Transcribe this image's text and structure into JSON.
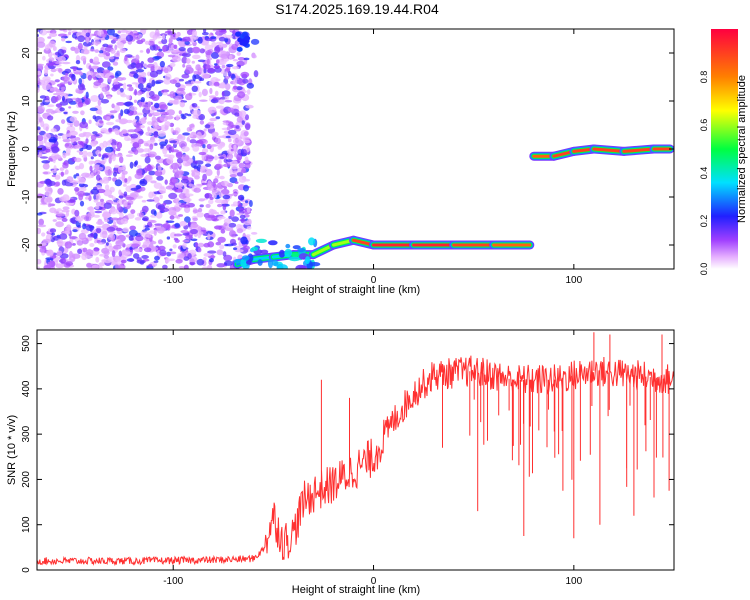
{
  "title": "S174.2025.169.19.44.R04",
  "chart_data": [
    {
      "type": "heatmap",
      "xlabel": "Height of straight line (km)",
      "ylabel": "Frequency (Hz)",
      "xlim": [
        -168,
        150
      ],
      "ylim": [
        -25,
        25
      ],
      "xticks": [
        -100,
        0,
        100
      ],
      "yticks": [
        -20,
        -10,
        0,
        10,
        20
      ],
      "colorbar": {
        "label": "Normalized spectral amplitude",
        "range": [
          0,
          1
        ],
        "ticks": [
          "0.0",
          "0.2",
          "0.4",
          "0.6",
          "0.8"
        ]
      },
      "noise_region": {
        "x_from": -168,
        "x_to": -62,
        "f_from": -25,
        "f_to": 25
      },
      "carrier_trace": [
        {
          "x": -68,
          "f": -24,
          "amp": 0.3
        },
        {
          "x": -60,
          "f": -23,
          "amp": 0.4
        },
        {
          "x": -50,
          "f": -22.5,
          "amp": 0.35
        },
        {
          "x": -40,
          "f": -22,
          "amp": 0.45
        },
        {
          "x": -30,
          "f": -22,
          "amp": 0.85
        },
        {
          "x": -20,
          "f": -20,
          "amp": 0.6
        },
        {
          "x": -10,
          "f": -19,
          "amp": 0.9
        },
        {
          "x": 0,
          "f": -20,
          "amp": 0.95
        },
        {
          "x": 20,
          "f": -20,
          "amp": 0.95
        },
        {
          "x": 40,
          "f": -20,
          "amp": 0.95
        },
        {
          "x": 60,
          "f": -20,
          "amp": 0.9
        },
        {
          "x": 78,
          "f": -20,
          "amp": 0.85
        },
        {
          "x": 80,
          "f": -1.5,
          "amp": 0.85
        },
        {
          "x": 90,
          "f": -1.5,
          "amp": 0.9
        },
        {
          "x": 100,
          "f": -0.5,
          "amp": 0.9
        },
        {
          "x": 110,
          "f": 0,
          "amp": 0.95
        },
        {
          "x": 125,
          "f": -0.5,
          "amp": 0.9
        },
        {
          "x": 140,
          "f": 0,
          "amp": 0.95
        },
        {
          "x": 148,
          "f": 0,
          "amp": 0.9
        }
      ]
    },
    {
      "type": "line",
      "xlabel": "Height of straight line (km)",
      "ylabel": "SNR (10 * v/v)",
      "xlim": [
        -168,
        150
      ],
      "ylim": [
        0,
        530
      ],
      "xticks": [
        -100,
        0,
        100
      ],
      "yticks": [
        0,
        100,
        200,
        300,
        400,
        500
      ],
      "color": "#ff3030",
      "envelope": [
        {
          "x": -168,
          "snr": 20
        },
        {
          "x": -120,
          "snr": 20
        },
        {
          "x": -80,
          "snr": 22
        },
        {
          "x": -60,
          "snr": 25
        },
        {
          "x": -55,
          "snr": 45
        },
        {
          "x": -50,
          "snr": 120
        },
        {
          "x": -45,
          "snr": 60
        },
        {
          "x": -40,
          "snr": 80
        },
        {
          "x": -35,
          "snr": 150
        },
        {
          "x": -30,
          "snr": 170
        },
        {
          "x": -20,
          "snr": 190
        },
        {
          "x": -10,
          "snr": 220
        },
        {
          "x": 0,
          "snr": 250
        },
        {
          "x": 10,
          "snr": 330
        },
        {
          "x": 20,
          "snr": 390
        },
        {
          "x": 30,
          "snr": 430
        },
        {
          "x": 50,
          "snr": 440
        },
        {
          "x": 70,
          "snr": 420
        },
        {
          "x": 90,
          "snr": 420
        },
        {
          "x": 110,
          "snr": 440
        },
        {
          "x": 130,
          "snr": 430
        },
        {
          "x": 150,
          "snr": 420
        }
      ],
      "spikes_up": [
        {
          "x": -26,
          "snr": 420
        },
        {
          "x": -12,
          "snr": 380
        },
        {
          "x": 110,
          "snr": 525
        },
        {
          "x": 118,
          "snr": 520
        },
        {
          "x": 144,
          "snr": 520
        }
      ],
      "spikes_down": [
        {
          "x": 52,
          "snr": 130
        },
        {
          "x": 75,
          "snr": 75
        },
        {
          "x": 100,
          "snr": 70
        },
        {
          "x": 113,
          "snr": 100
        },
        {
          "x": 130,
          "snr": 120
        },
        {
          "x": 140,
          "snr": 160
        }
      ]
    }
  ]
}
